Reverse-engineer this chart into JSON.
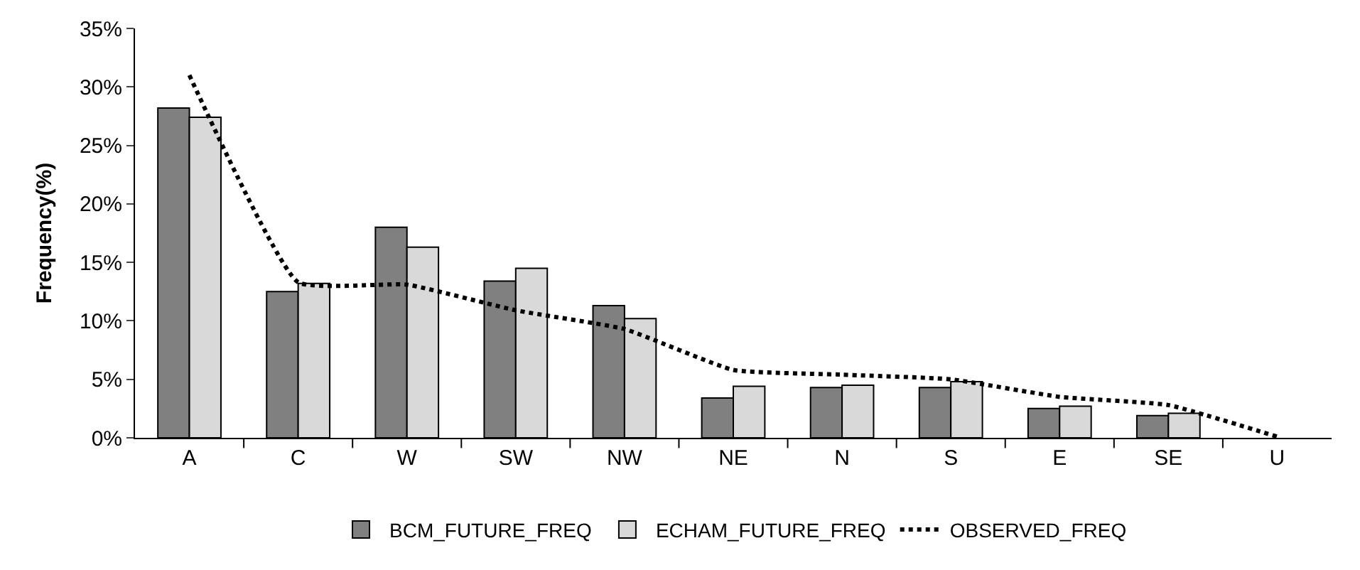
{
  "chart_data": {
    "type": "bar",
    "ylabel": "Frequency(%)",
    "categories": [
      "A",
      "C",
      "W",
      "SW",
      "NW",
      "NE",
      "N",
      "S",
      "E",
      "SE",
      "U"
    ],
    "series": [
      {
        "name": "BCM_FUTURE_FREQ",
        "color": "#808080",
        "values": [
          28.2,
          12.5,
          18.0,
          13.4,
          11.3,
          3.4,
          4.3,
          4.3,
          2.5,
          1.9,
          null
        ]
      },
      {
        "name": "ECHAM_FUTURE_FREQ",
        "color": "#d9d9d9",
        "values": [
          27.4,
          13.2,
          16.3,
          14.5,
          10.2,
          4.4,
          4.5,
          4.8,
          2.7,
          2.1,
          null
        ]
      },
      {
        "name": "OBSERVED_FREQ",
        "type": "line",
        "line_style": "dotted",
        "color": "#000000",
        "values": [
          31.0,
          13.3,
          13.1,
          10.9,
          9.3,
          5.8,
          5.4,
          5.0,
          3.5,
          2.8,
          0.1
        ]
      }
    ],
    "ylim": [
      0,
      35
    ],
    "yticks": [
      {
        "value": 0,
        "label": "0%"
      },
      {
        "value": 5,
        "label": "5%"
      },
      {
        "value": 10,
        "label": "10%"
      },
      {
        "value": 15,
        "label": "15%"
      },
      {
        "value": 20,
        "label": "20%"
      },
      {
        "value": 25,
        "label": "25%"
      },
      {
        "value": 30,
        "label": "30%"
      },
      {
        "value": 35,
        "label": "35%"
      }
    ],
    "legend": "bottom"
  }
}
